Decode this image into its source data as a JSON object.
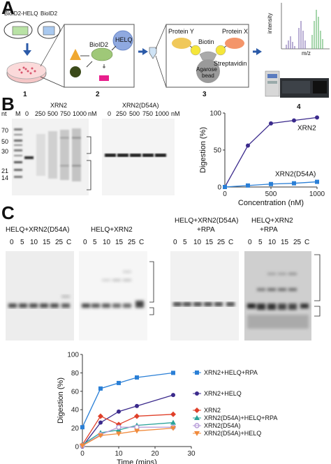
{
  "panels": {
    "a": {
      "letter": "A",
      "bait_labels": [
        "BioID2-HELQ",
        "BioID2"
      ],
      "complex_labels": [
        "BioID2",
        "HELQ"
      ],
      "bead_labels": [
        "Protein Y",
        "Protein X",
        "Biotin",
        "Streptavidin",
        "Agarose",
        "bead"
      ],
      "ms_axis": {
        "y": "intensity",
        "x": "m/z"
      },
      "step_numbers": [
        "1",
        "2",
        "3",
        "4"
      ]
    },
    "b": {
      "letter": "B",
      "nt_label": "nt",
      "marker_label": "M",
      "gel_titles": [
        "XRN2",
        "XRN2(D54A)"
      ],
      "lane_labels_left": [
        "0",
        "250",
        "500",
        "750",
        "1000",
        "nM"
      ],
      "lane_labels_right": [
        "0",
        "250",
        "500",
        "750",
        "1000",
        "nM"
      ],
      "marker_sizes": [
        "70",
        "50",
        "30",
        "21",
        "14"
      ]
    },
    "c": {
      "letter": "C",
      "gel_titles": [
        "HELQ+XRN2(D54A)",
        "HELQ+XRN2",
        "HELQ+XRN2(D54A)",
        "+RPA",
        "HELQ+XRN2",
        "+RPA"
      ],
      "time_labels": [
        "0",
        "5",
        "10",
        "15",
        "25",
        "C"
      ]
    }
  },
  "chart_data": [
    {
      "type": "line",
      "xlabel": "Concentration (nM)",
      "ylabel": "Digestion (%)",
      "xlim": [
        0,
        1000
      ],
      "ylim": [
        0,
        100
      ],
      "xticks": [
        0,
        500,
        1000
      ],
      "yticks": [
        0,
        50,
        100
      ],
      "x": [
        0,
        250,
        500,
        750,
        1000
      ],
      "series": [
        {
          "name": "XRN2",
          "color": "#3b2a8c",
          "marker": "circle",
          "values": [
            0,
            56,
            86,
            90,
            94
          ]
        },
        {
          "name": "XRN2(D54A)",
          "color": "#2a7fd6",
          "marker": "square",
          "values": [
            0,
            2,
            4,
            5,
            7
          ]
        }
      ],
      "grid": false,
      "legend": "inline labels"
    },
    {
      "type": "line",
      "xlabel": "Time (mins)",
      "ylabel": "Digestion (%)",
      "xlim": [
        0,
        30
      ],
      "ylim": [
        0,
        100
      ],
      "xticks": [
        0,
        10,
        20,
        30
      ],
      "yticks": [
        0,
        20,
        40,
        60,
        80,
        100
      ],
      "x": [
        0,
        5,
        10,
        15,
        25
      ],
      "series": [
        {
          "name": "XRN2+HELQ+RPA",
          "color": "#2a7fd6",
          "marker": "square",
          "values": [
            21,
            63,
            69,
            75,
            80
          ]
        },
        {
          "name": "XRN2+HELQ",
          "color": "#3b2a8c",
          "marker": "circle",
          "values": [
            0,
            26,
            38,
            44,
            56
          ]
        },
        {
          "name": "XRN2",
          "color": "#e0402a",
          "marker": "diamond",
          "values": [
            2,
            33,
            24,
            33,
            35
          ]
        },
        {
          "name": "XRN2(D54A)+HELQ+RPA",
          "color": "#2aa39a",
          "marker": "triangle",
          "values": [
            2,
            15,
            18,
            23,
            26
          ]
        },
        {
          "name": "XRN2(D54A)",
          "color": "#b59ad8",
          "marker": "open-circle",
          "values": [
            1,
            13,
            21,
            21,
            21
          ]
        },
        {
          "name": "XRN2(D54A)+HELQ",
          "color": "#f08a3c",
          "marker": "triangle-down",
          "values": [
            1,
            12,
            14,
            17,
            20
          ]
        }
      ],
      "grid": false,
      "legend": "right"
    }
  ]
}
